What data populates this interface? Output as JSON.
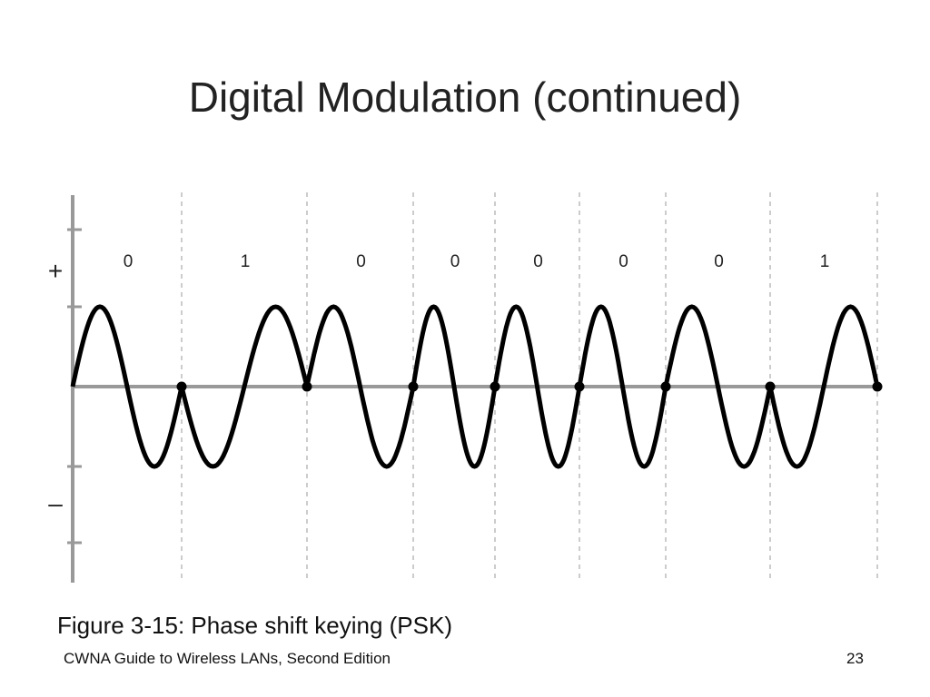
{
  "title": "Digital Modulation (continued)",
  "figure": {
    "plus": "+",
    "minus": "–",
    "bits": [
      "0",
      "1",
      "0",
      "0",
      "0",
      "0",
      "0",
      "1"
    ]
  },
  "caption": "Figure 3-15: Phase shift keying (PSK)",
  "footer": {
    "source": "CWNA Guide to Wireless LANs, Second Edition",
    "page": "23"
  }
}
